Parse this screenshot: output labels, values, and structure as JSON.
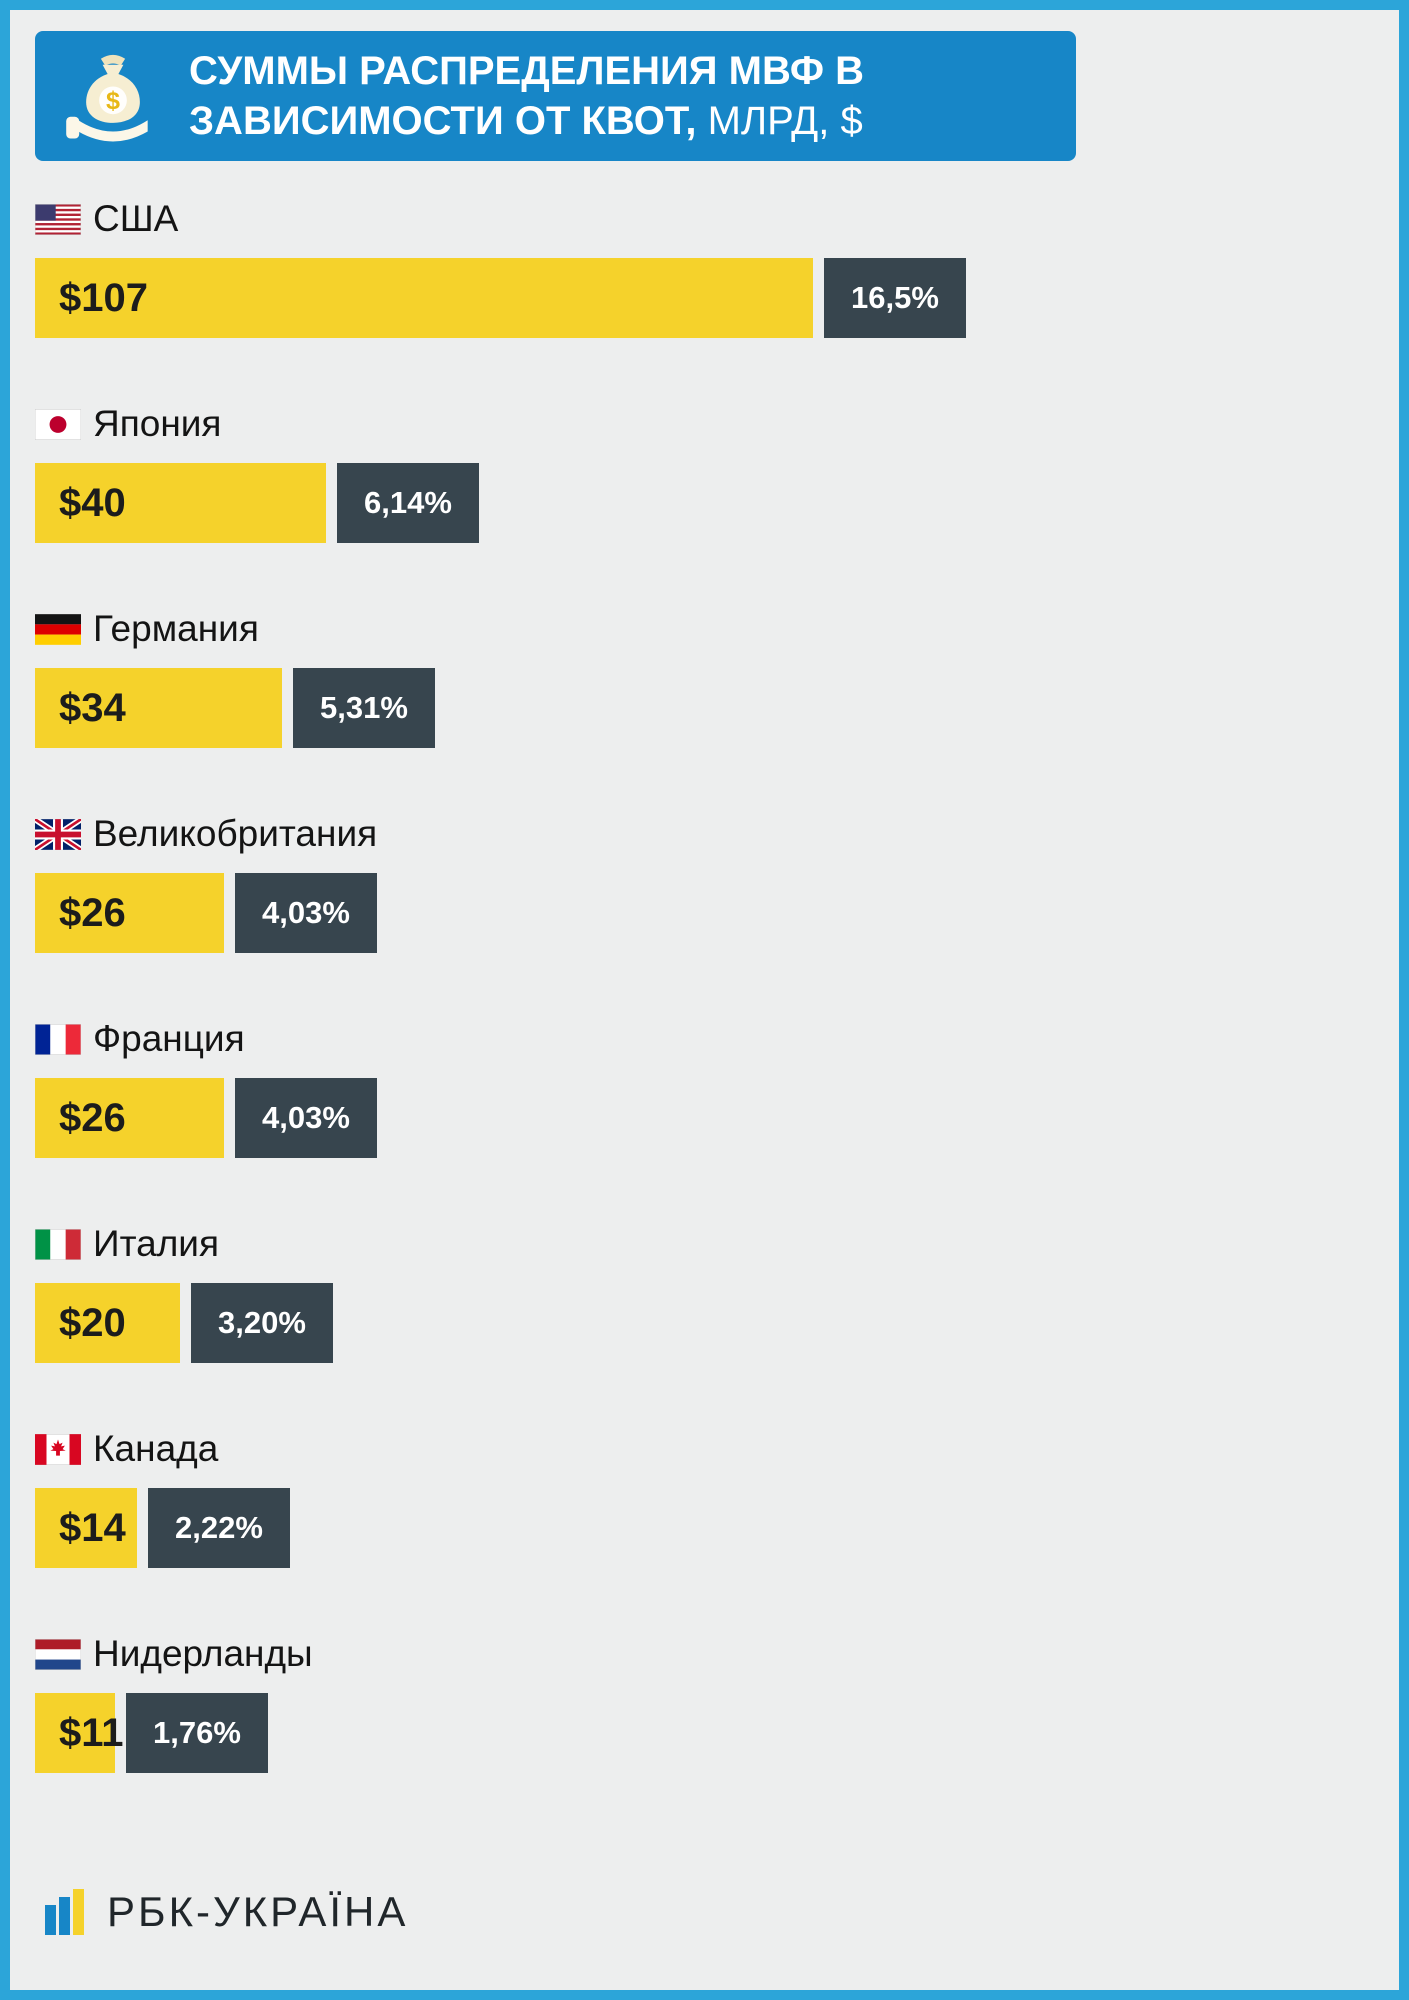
{
  "header": {
    "title_bold": "СУММЫ РАСПРЕДЕЛЕНИЯ МВФ В ЗАВИСИМОСТИ ОТ КВОТ,",
    "title_light": " МЛРД, $",
    "background_color": "#1786c7",
    "icon": "money-bag-in-hand-icon"
  },
  "frame": {
    "border_color": "#2ca5d9",
    "background_color": "#edeeee"
  },
  "chart_data": {
    "type": "bar",
    "title": "СУММЫ РАСПРЕДЕЛЕНИЯ МВФ В ЗАВИСИМОСТИ ОТ КВОТ, МЛРД, $",
    "unit": "млрд $",
    "orientation": "horizontal",
    "bar_color": "#f5d22b",
    "percent_box_color": "#37454e",
    "max_value": 107,
    "categories": [
      "США",
      "Япония",
      "Германия",
      "Великобритания",
      "Франция",
      "Италия",
      "Канада",
      "Нидерланды"
    ],
    "values": [
      107,
      40,
      34,
      26,
      26,
      20,
      14,
      11
    ],
    "percents": [
      16.5,
      6.14,
      5.31,
      4.03,
      4.03,
      3.2,
      2.22,
      1.76
    ],
    "rows": [
      {
        "country": "США",
        "flag": "flag-usa",
        "value": 107,
        "value_label": "$107",
        "percent_label": "16,5%"
      },
      {
        "country": "Япония",
        "flag": "flag-japan",
        "value": 40,
        "value_label": "$40",
        "percent_label": "6,14%"
      },
      {
        "country": "Германия",
        "flag": "flag-germany",
        "value": 34,
        "value_label": "$34",
        "percent_label": "5,31%"
      },
      {
        "country": "Великобритания",
        "flag": "flag-uk",
        "value": 26,
        "value_label": "$26",
        "percent_label": "4,03%"
      },
      {
        "country": "Франция",
        "flag": "flag-france",
        "value": 26,
        "value_label": "$26",
        "percent_label": "4,03%"
      },
      {
        "country": "Италия",
        "flag": "flag-italy",
        "value": 20,
        "value_label": "$20",
        "percent_label": "3,20%"
      },
      {
        "country": "Канада",
        "flag": "flag-canada",
        "value": 14,
        "value_label": "$14",
        "percent_label": "2,22%"
      },
      {
        "country": "Нидерланды",
        "flag": "flag-netherlands",
        "value": 11,
        "value_label": "$11",
        "percent_label": "1,76%"
      }
    ]
  },
  "footer": {
    "logo_text": "РБК-УКРАЇНА",
    "logo_icon": "rbc-ukraine-logo-icon",
    "logo_blue": "#1786c7",
    "logo_yellow": "#f5d22b"
  }
}
